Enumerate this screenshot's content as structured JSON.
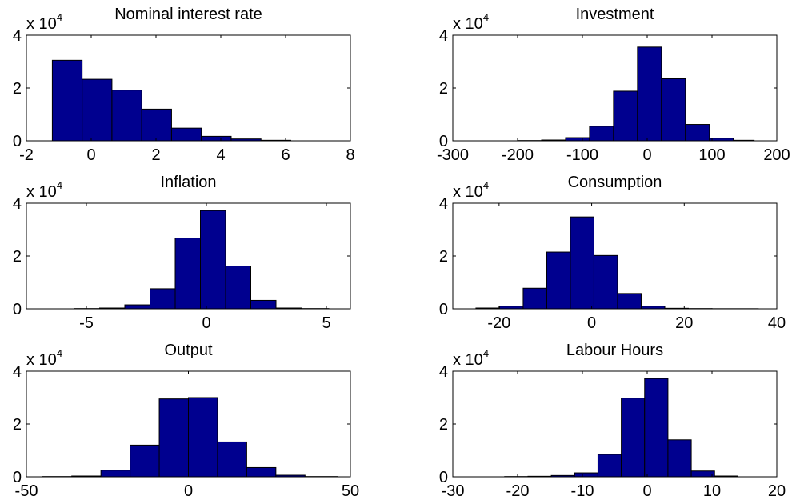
{
  "figure": {
    "bar_color": "#00008f",
    "axis_color": "#000000",
    "background": "#ffffff"
  },
  "chart_data": [
    {
      "type": "bar",
      "title": "Nominal interest rate",
      "y_exponent_label": {
        "base": "x 10",
        "exponent": "4"
      },
      "xlim": [
        -2,
        8
      ],
      "ylim": [
        0,
        4
      ],
      "xticks": [
        -2,
        0,
        2,
        4,
        6,
        8
      ],
      "yticks": [
        0,
        2,
        4
      ],
      "bin_edges": [
        -1.2,
        -0.28,
        0.64,
        1.56,
        2.48,
        3.4,
        4.32,
        5.24,
        6.16
      ],
      "values": [
        3.05,
        2.33,
        1.92,
        1.2,
        0.48,
        0.17,
        0.07,
        0.02
      ]
    },
    {
      "type": "bar",
      "title": "Investment",
      "y_exponent_label": {
        "base": "x 10",
        "exponent": "4"
      },
      "xlim": [
        -300,
        200
      ],
      "ylim": [
        0,
        4
      ],
      "xticks": [
        -300,
        -200,
        -100,
        0,
        100,
        200
      ],
      "yticks": [
        0,
        2,
        4
      ],
      "bin_edges": [
        -200,
        -163,
        -126,
        -89,
        -52,
        -15,
        22,
        59,
        96,
        133,
        165
      ],
      "values": [
        0.01,
        0.03,
        0.12,
        0.55,
        1.88,
        3.55,
        2.35,
        0.62,
        0.1,
        0.02
      ]
    },
    {
      "type": "bar",
      "title": "Inflation",
      "y_exponent_label": {
        "base": "x 10",
        "exponent": "4"
      },
      "xlim": [
        -7.5,
        6
      ],
      "ylim": [
        0,
        4
      ],
      "xticks": [
        -5,
        0,
        5
      ],
      "yticks": [
        0,
        2,
        4
      ],
      "bin_edges": [
        -5.5,
        -4.45,
        -3.4,
        -2.35,
        -1.3,
        -0.25,
        0.8,
        1.85,
        2.9,
        3.95,
        5.1
      ],
      "values": [
        0.01,
        0.03,
        0.15,
        0.76,
        2.68,
        3.72,
        1.62,
        0.32,
        0.03,
        0.01
      ]
    },
    {
      "type": "bar",
      "title": "Consumption",
      "y_exponent_label": {
        "base": "x 10",
        "exponent": "4"
      },
      "xlim": [
        -30,
        40
      ],
      "ylim": [
        0,
        4
      ],
      "xticks": [
        -20,
        0,
        20,
        40
      ],
      "yticks": [
        0,
        2,
        4
      ],
      "bin_edges": [
        -25,
        -19.9,
        -14.8,
        -9.7,
        -4.6,
        0.5,
        5.6,
        10.7,
        15.8,
        20.9,
        26,
        36
      ],
      "values": [
        0.03,
        0.1,
        0.78,
        2.15,
        3.48,
        2.02,
        0.58,
        0.1,
        0.02,
        0.01,
        0.005
      ]
    },
    {
      "type": "bar",
      "title": "Output",
      "y_exponent_label": {
        "base": "x 10",
        "exponent": "4"
      },
      "xlim": [
        -50,
        50
      ],
      "ylim": [
        0,
        4
      ],
      "xticks": [
        -50,
        0,
        50
      ],
      "yticks": [
        0,
        2,
        4
      ],
      "bin_edges": [
        -45,
        -36,
        -27,
        -18,
        -9,
        0,
        9,
        18,
        27,
        36,
        46
      ],
      "values": [
        0.01,
        0.03,
        0.25,
        1.2,
        2.95,
        3.0,
        1.32,
        0.35,
        0.06,
        0.01
      ]
    },
    {
      "type": "bar",
      "title": "Labour Hours",
      "y_exponent_label": {
        "base": "x 10",
        "exponent": "4"
      },
      "xlim": [
        -30,
        20
      ],
      "ylim": [
        0,
        4
      ],
      "xticks": [
        -30,
        -20,
        -10,
        0,
        10,
        20
      ],
      "yticks": [
        0,
        2,
        4
      ],
      "bin_edges": [
        -22,
        -18.4,
        -14.8,
        -11.2,
        -7.6,
        -4,
        -0.4,
        3.2,
        6.8,
        10.4,
        14
      ],
      "values": [
        0.01,
        0.02,
        0.05,
        0.15,
        0.85,
        2.98,
        3.72,
        1.4,
        0.22,
        0.03
      ]
    }
  ]
}
